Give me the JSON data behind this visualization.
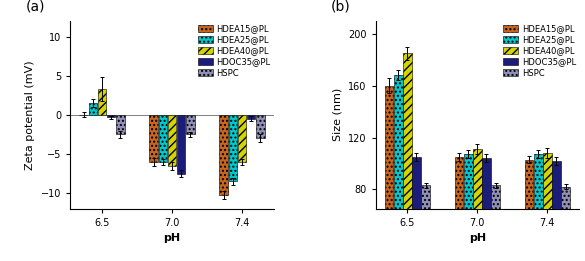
{
  "panel_a": {
    "title": "(a)",
    "xlabel": "pH",
    "ylabel": "Zeta potential (mV)",
    "ylim": [
      -12,
      12
    ],
    "yticks": [
      -10,
      -5,
      0,
      5,
      10
    ],
    "x_labels": [
      "6.5",
      "7.0",
      "7.4"
    ],
    "series": [
      {
        "name": "HDEA15@PL",
        "color": "#c8651e",
        "hatch": "....",
        "values": [
          0.0,
          -6.0,
          -10.2
        ],
        "errors": [
          0.3,
          0.5,
          0.5
        ]
      },
      {
        "name": "HDEA25@PL",
        "color": "#00c8cc",
        "hatch": "....",
        "values": [
          1.5,
          -6.0,
          -8.5
        ],
        "errors": [
          0.5,
          0.4,
          0.4
        ]
      },
      {
        "name": "HDEA40@PL",
        "color": "#d4d400",
        "hatch": "////",
        "values": [
          3.3,
          -6.5,
          -6.0
        ],
        "errors": [
          1.5,
          0.5,
          0.4
        ]
      },
      {
        "name": "HDOC35@PL",
        "color": "#1c1c7a",
        "hatch": "",
        "values": [
          -0.3,
          -7.5,
          -0.5
        ],
        "errors": [
          0.2,
          0.5,
          0.3
        ]
      },
      {
        "name": "HSPC",
        "color": "#9090b8",
        "hatch": "....",
        "values": [
          -2.5,
          -2.5,
          -3.0
        ],
        "errors": [
          0.4,
          0.3,
          0.5
        ]
      }
    ]
  },
  "panel_b": {
    "title": "(b)",
    "xlabel": "pH",
    "ylabel": "Size (nm)",
    "ylim": [
      65,
      210
    ],
    "yticks": [
      80,
      120,
      160,
      200
    ],
    "x_labels": [
      "6.5",
      "7.0",
      "7.4"
    ],
    "series": [
      {
        "name": "HDEA15@PL",
        "color": "#c8651e",
        "hatch": "....",
        "values": [
          160,
          105,
          103
        ],
        "errors": [
          6,
          3,
          3
        ]
      },
      {
        "name": "HDEA25@PL",
        "color": "#00c8cc",
        "hatch": "....",
        "values": [
          168,
          107,
          107
        ],
        "errors": [
          4,
          3,
          3
        ]
      },
      {
        "name": "HDEA40@PL",
        "color": "#d4d400",
        "hatch": "////",
        "values": [
          185,
          111,
          108
        ],
        "errors": [
          5,
          4,
          4
        ]
      },
      {
        "name": "HDOC35@PL",
        "color": "#1c1c7a",
        "hatch": "",
        "values": [
          105,
          104,
          102
        ],
        "errors": [
          3,
          3,
          3
        ]
      },
      {
        "name": "HSPC",
        "color": "#9090b8",
        "hatch": "....",
        "values": [
          83,
          83,
          82
        ],
        "errors": [
          2,
          2,
          2
        ]
      }
    ]
  },
  "bar_width": 0.13,
  "legend_fontsize": 6.0,
  "axis_fontsize": 8,
  "tick_fontsize": 7,
  "title_fontsize": 10,
  "background_color": "#ffffff"
}
